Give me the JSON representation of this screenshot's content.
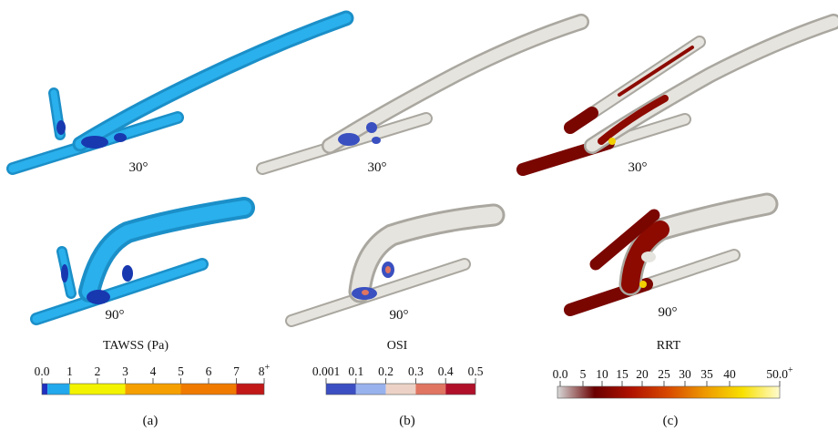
{
  "panels": [
    {
      "id": "a",
      "label": "(a)",
      "models": [
        {
          "angle_label": "30°"
        },
        {
          "angle_label": "90°"
        }
      ],
      "colorbar": {
        "title": "TAWSS (Pa)",
        "tick_labels": [
          "0.0",
          "1",
          "2",
          "3",
          "4",
          "5",
          "6",
          "7",
          "8"
        ],
        "last_tick_suffix": "+",
        "segments": [
          {
            "from": 0,
            "to": 0.2,
            "color": "#2030c0"
          },
          {
            "from": 0.2,
            "to": 1,
            "color": "#22a8ec"
          },
          {
            "from": 1,
            "to": 3,
            "color": "#f3f300"
          },
          {
            "from": 3,
            "to": 5,
            "color": "#f5a000"
          },
          {
            "from": 5,
            "to": 7,
            "color": "#f07a00"
          },
          {
            "from": 7,
            "to": 8,
            "color": "#c21818"
          }
        ]
      }
    },
    {
      "id": "b",
      "label": "(b)",
      "models": [
        {
          "angle_label": "30°"
        },
        {
          "angle_label": "90°"
        }
      ],
      "colorbar": {
        "title": "OSI",
        "tick_labels": [
          "0.001",
          "0.1",
          "0.2",
          "0.3",
          "0.4",
          "0.5"
        ],
        "segments": [
          {
            "from": 0,
            "to": 1,
            "color": "#3b4fc2"
          },
          {
            "from": 1,
            "to": 2,
            "color": "#98b2ee"
          },
          {
            "from": 2,
            "to": 3,
            "color": "#ecd2c6"
          },
          {
            "from": 3,
            "to": 4,
            "color": "#e07561"
          },
          {
            "from": 4,
            "to": 5,
            "color": "#b0102a"
          }
        ]
      }
    },
    {
      "id": "c",
      "label": "(c)",
      "models": [
        {
          "angle_label": "30°"
        },
        {
          "angle_label": "90°"
        }
      ],
      "colorbar": {
        "title": "RRT",
        "tick_labels": [
          "0.0",
          "5",
          "10",
          "15",
          "20",
          "25",
          "30",
          "35",
          "40",
          "50.0"
        ],
        "last_tick_suffix": "+",
        "gradient_stops": [
          "#d8d8d8",
          "#6a0000",
          "#b01200",
          "#d84a00",
          "#ee9a00",
          "#f8e000",
          "#fffbd0"
        ]
      }
    }
  ],
  "model_colors": {
    "tawss_vessel": "#1e9ed8",
    "tawss_low": "#1838b0",
    "osi_vessel": "#e4e2dc",
    "osi_high": "#3a50c0",
    "rrt_vessel": "#e4e2dc",
    "rrt_high": "#8c0a00",
    "rrt_hot": "#f2d000"
  }
}
